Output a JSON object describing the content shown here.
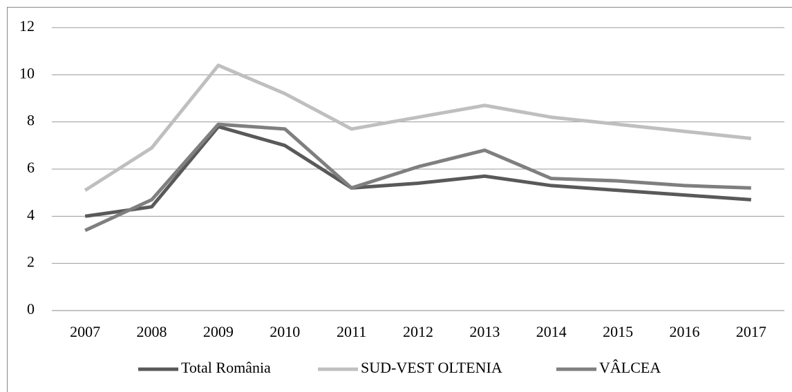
{
  "chart_data": {
    "type": "line",
    "categories": [
      "2007",
      "2008",
      "2009",
      "2010",
      "2011",
      "2012",
      "2013",
      "2014",
      "2015",
      "2016",
      "2017"
    ],
    "series": [
      {
        "name": "Total România",
        "color": "#595959",
        "values": [
          4.0,
          4.4,
          7.8,
          7.0,
          5.2,
          5.4,
          5.7,
          5.3,
          5.1,
          4.9,
          4.7
        ]
      },
      {
        "name": "SUD-VEST OLTENIA",
        "color": "#bfbfbf",
        "values": [
          5.1,
          6.9,
          10.4,
          9.2,
          7.7,
          8.2,
          8.7,
          8.2,
          7.9,
          7.6,
          7.3
        ]
      },
      {
        "name": "VÂLCEA",
        "color": "#7f7f7f",
        "values": [
          3.4,
          4.7,
          7.9,
          7.7,
          5.2,
          6.1,
          6.8,
          5.6,
          5.5,
          5.3,
          5.2
        ]
      }
    ],
    "ylim": [
      0,
      12
    ],
    "yticks": [
      0,
      2,
      4,
      6,
      8,
      10,
      12
    ],
    "grid": true,
    "legend": "bottom"
  }
}
